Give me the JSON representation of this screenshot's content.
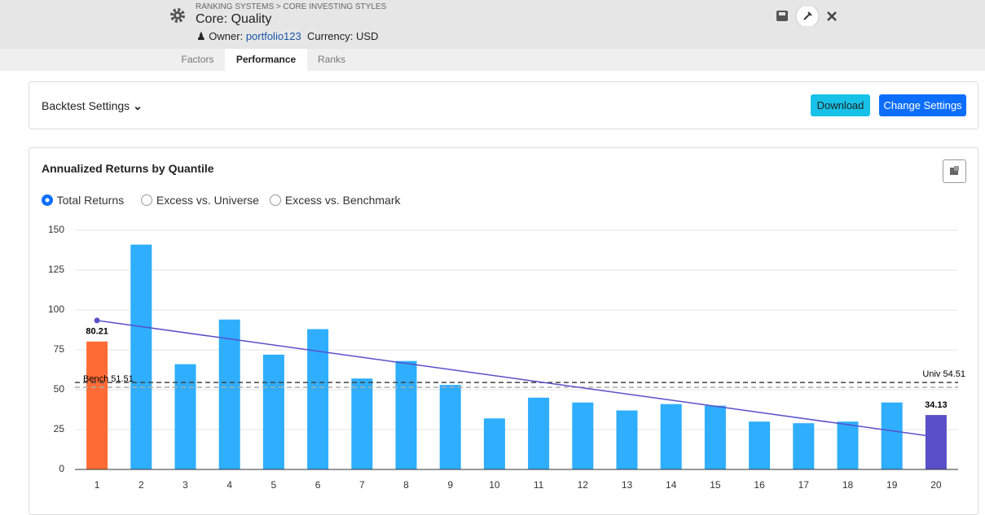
{
  "header": {
    "breadcrumb": "RANKING SYSTEMS > CORE INVESTING STYLES",
    "title": "Core: Quality",
    "owner_label": "Owner:",
    "owner": "portfolio123",
    "currency": "Currency: USD"
  },
  "tabs": {
    "items": [
      "Factors",
      "Performance",
      "Ranks"
    ],
    "active": 1
  },
  "settings": {
    "label": "Backtest Settings",
    "buttons": [
      "Download",
      "Change Settings"
    ]
  },
  "panel": {
    "title": "Annualized Returns by Quantile",
    "options": [
      "Total Returns",
      "Excess vs. Universe",
      "Excess vs. Benchmark"
    ],
    "selected": 0
  },
  "chart_data": {
    "type": "bar",
    "categories": [
      "1",
      "2",
      "3",
      "4",
      "5",
      "6",
      "7",
      "8",
      "9",
      "10",
      "11",
      "12",
      "13",
      "14",
      "15",
      "16",
      "17",
      "18",
      "19",
      "20"
    ],
    "values": [
      80.21,
      141,
      66,
      94,
      72,
      88,
      57,
      68,
      53,
      32,
      45,
      42,
      37,
      41,
      40,
      30,
      29,
      30,
      42,
      34.13
    ],
    "colors": [
      "#ff6b35",
      "#2eaefc",
      "#2eaefc",
      "#2eaefc",
      "#2eaefc",
      "#2eaefc",
      "#2eaefc",
      "#2eaefc",
      "#2eaefc",
      "#2eaefc",
      "#2eaefc",
      "#2eaefc",
      "#2eaefc",
      "#2eaefc",
      "#2eaefc",
      "#2eaefc",
      "#2eaefc",
      "#2eaefc",
      "#2eaefc",
      "#5a4fc8"
    ],
    "value_labels_at": [
      0,
      19
    ],
    "ylim": [
      0,
      150
    ],
    "yticks": [
      0,
      25,
      50,
      75,
      100,
      125,
      150
    ],
    "grid": true,
    "reference_lines": [
      {
        "label": "Bench 51.51",
        "value": 51.51,
        "side": "left",
        "color": "#aaaaaa"
      },
      {
        "label": "Univ 54.51",
        "value": 54.51,
        "side": "right",
        "color": "#444444"
      }
    ],
    "trend": {
      "values": [
        93.4,
        20.4
      ],
      "color": "#5a4fc8"
    }
  }
}
